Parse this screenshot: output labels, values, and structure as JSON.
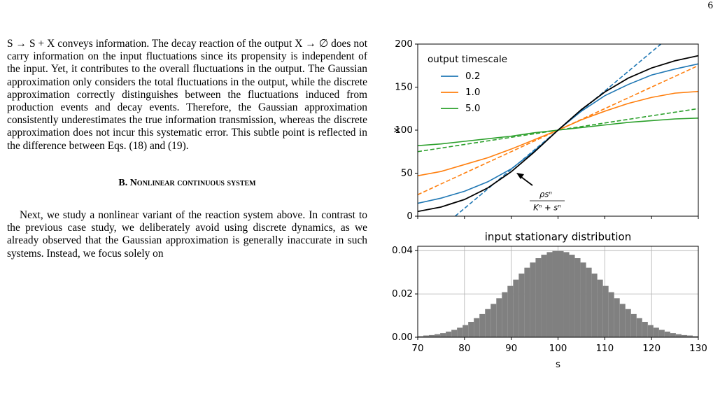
{
  "page_number": "6",
  "paragraphs": [
    "S → S + X conveys information. The decay reaction of the output X → ∅ does not carry information on the input fluctuations since its propensity is independent of the input. Yet, it contributes to the overall fluctuations in the output. The Gaussian approximation only considers the total fluctuations in the output, while the discrete approximation correctly distinguishes between the fluctuations induced from production events and decay events. Therefore, the Gaussian approximation consistently underestimates the true information transmission, whereas the discrete approximation does not incur this systematic error. This subtle point is reflected in the difference between Eqs. (18) and (19).",
    "Next, we study a nonlinear variant of the reaction system above. In contrast to the previous case study, we deliberately avoid using discrete dynamics, as we already observed that the Gaussian approximation is generally inaccurate in such systems. Instead, we focus solely on"
  ],
  "section_heading": "B.   Nonlinear continuous system",
  "chart_data": [
    {
      "type": "line",
      "y_label": "x",
      "legend_title": "output timescale",
      "x": [
        70,
        75,
        80,
        85,
        90,
        95,
        100,
        105,
        110,
        115,
        120,
        125,
        130
      ],
      "series": [
        {
          "name": "0.2",
          "color": "#1f77b4",
          "values": [
            15,
            21,
            29,
            40,
            55,
            76,
            100,
            122,
            140,
            153,
            164,
            171,
            177
          ]
        },
        {
          "name": "1.0",
          "color": "#ff7f0e",
          "values": [
            47,
            52,
            60,
            68,
            78,
            89,
            100,
            112,
            122,
            131,
            138,
            143,
            145
          ]
        },
        {
          "name": "5.0",
          "color": "#2ca02c",
          "values": [
            82,
            84,
            87,
            90,
            93,
            97,
            100,
            103,
            106,
            109,
            111,
            113,
            114
          ]
        }
      ],
      "linear_approximations": [
        {
          "color": "#1f77b4",
          "x": [
            78,
            122
          ],
          "values": [
            0,
            200
          ]
        },
        {
          "color": "#ff7f0e",
          "x": [
            70,
            130
          ],
          "values": [
            25,
            175
          ]
        },
        {
          "color": "#2ca02c",
          "x": [
            70,
            130
          ],
          "values": [
            75,
            125
          ]
        }
      ],
      "hill_curve": {
        "color": "#000000",
        "x": [
          70,
          75,
          80,
          85,
          90,
          95,
          100,
          105,
          110,
          115,
          120,
          125,
          130
        ],
        "values": [
          5.5,
          10.7,
          19.4,
          32.9,
          51.7,
          74.9,
          100,
          123.9,
          144.3,
          160.4,
          172.2,
          180.6,
          186.5
        ]
      },
      "annotation": {
        "numerator": "ρsⁿ",
        "denominator": "Kⁿ + sⁿ"
      },
      "xlim": [
        70,
        130
      ],
      "xticks": [
        70,
        80,
        90,
        100,
        110,
        120,
        130
      ],
      "ylim": [
        0,
        200
      ],
      "yticks": [
        0,
        50,
        100,
        150,
        200
      ]
    },
    {
      "type": "histogram",
      "title": "input stationary distribution",
      "x_label": "s",
      "color": "#808080",
      "grid": true,
      "bins": [
        70,
        71.2,
        72.4,
        73.6,
        74.8,
        76,
        77.2,
        78.4,
        79.6,
        80.8,
        82,
        83.2,
        84.4,
        85.6,
        86.8,
        88,
        89.2,
        90.4,
        91.6,
        92.8,
        94,
        95.2,
        96.4,
        97.6,
        98.8,
        100,
        101.2,
        102.4,
        103.6,
        104.8,
        106,
        107.2,
        108.4,
        109.6,
        110.8,
        112,
        113.2,
        114.4,
        115.6,
        116.8,
        118,
        119.2,
        120.4,
        121.6,
        122.8,
        124,
        125.2,
        126.4,
        127.6,
        128.8,
        130
      ],
      "values": [
        0.0005,
        0.0008,
        0.001,
        0.0014,
        0.0019,
        0.0026,
        0.0034,
        0.0044,
        0.0056,
        0.0071,
        0.0088,
        0.0107,
        0.013,
        0.0154,
        0.018,
        0.0208,
        0.0237,
        0.0266,
        0.0294,
        0.0321,
        0.0345,
        0.0365,
        0.0381,
        0.0393,
        0.0398,
        0.0398,
        0.0393,
        0.0381,
        0.0365,
        0.0345,
        0.0321,
        0.0294,
        0.0266,
        0.0237,
        0.0208,
        0.018,
        0.0154,
        0.013,
        0.0107,
        0.0088,
        0.0071,
        0.0056,
        0.0044,
        0.0034,
        0.0026,
        0.0019,
        0.0014,
        0.001,
        0.0008,
        0.0005
      ],
      "xlim": [
        70,
        130
      ],
      "xticks": [
        70,
        80,
        90,
        100,
        110,
        120,
        130
      ],
      "ylim": [
        0,
        0.042
      ],
      "yticks": [
        {
          "value": 0,
          "label": "0.00"
        },
        {
          "value": 0.02,
          "label": "0.02"
        },
        {
          "value": 0.04,
          "label": "0.04"
        }
      ]
    }
  ]
}
